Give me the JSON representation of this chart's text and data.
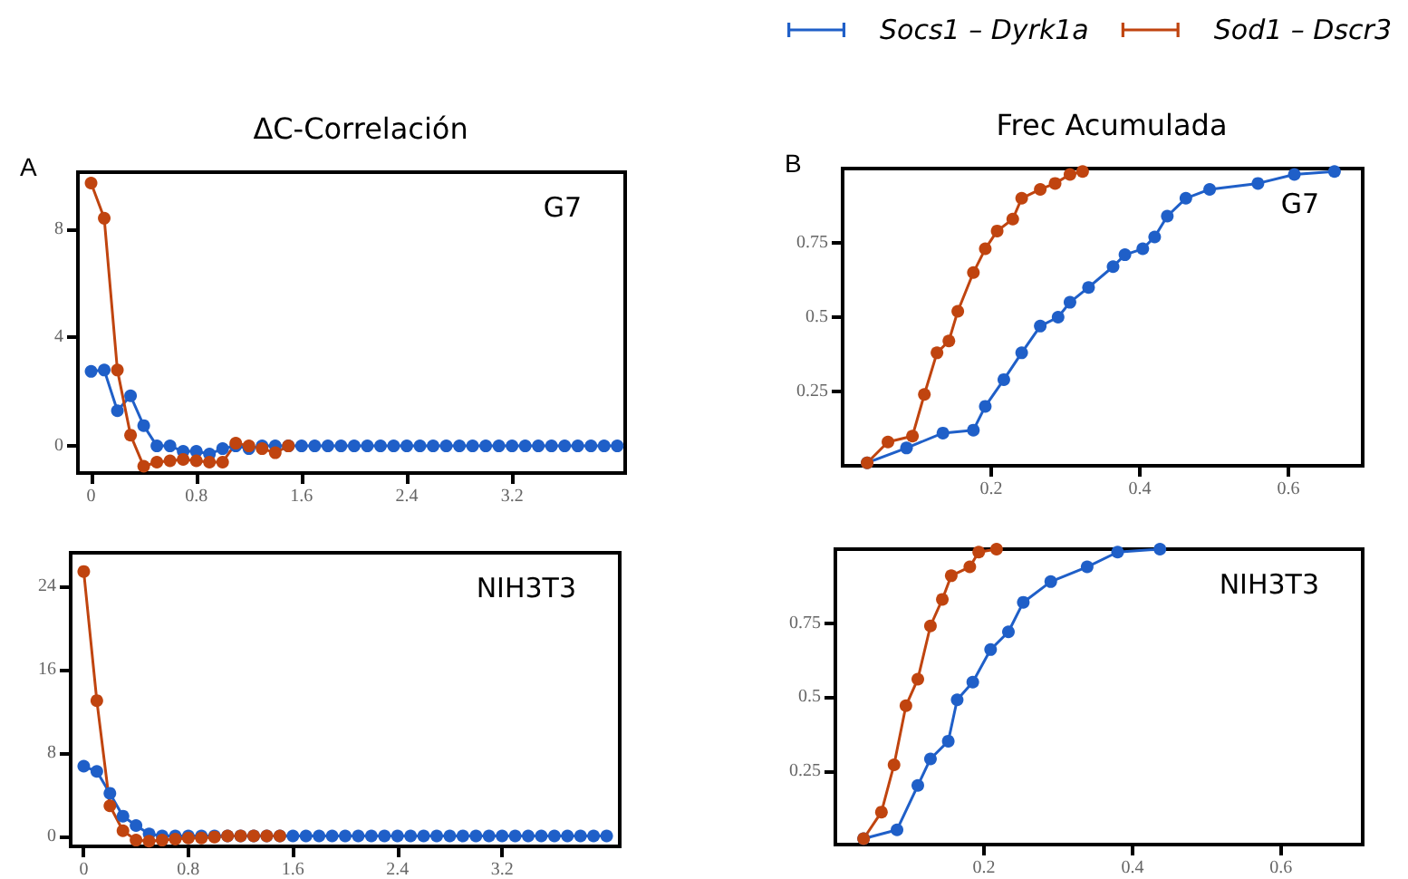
{
  "chart_data": [
    {
      "type": "line",
      "title": "ΔC-Correlación",
      "subtitle": "G7",
      "annotations": [
        "A"
      ],
      "xlim": [
        -0.1,
        4.06
      ],
      "xticks": [
        0,
        0.8,
        1.6,
        2.4,
        3.2
      ],
      "ylim": [
        -1,
        10.1
      ],
      "yticks": [
        0,
        4,
        8
      ],
      "grid": false,
      "marker": "circle",
      "line_style": "solid",
      "series": [
        {
          "color": "#1f5fc8",
          "x": [
            0,
            0.1,
            0.2,
            0.3,
            0.4,
            0.5,
            0.6,
            0.7,
            0.8,
            0.9,
            1.0,
            1.1,
            1.2,
            1.3,
            1.4,
            1.5,
            1.6,
            1.7,
            1.8,
            1.9,
            2.0,
            2.1,
            2.2,
            2.3,
            2.4,
            2.5,
            2.6,
            2.7,
            2.8,
            2.9,
            3.0,
            3.1,
            3.2,
            3.3,
            3.4,
            3.5,
            3.6,
            3.7,
            3.8,
            3.9,
            4.0
          ],
          "values": [
            2.75,
            2.8,
            1.3,
            1.85,
            0.75,
            0,
            0,
            -0.2,
            -0.2,
            -0.3,
            -0.1,
            0,
            -0.1,
            0,
            0,
            0,
            0,
            0,
            0,
            0,
            0,
            0,
            0,
            0,
            0,
            0,
            0,
            0,
            0,
            0,
            0,
            0,
            0,
            0,
            0,
            0,
            0,
            0,
            0,
            0,
            0
          ]
        },
        {
          "color": "#c0440f",
          "x": [
            0,
            0.1,
            0.2,
            0.3,
            0.4,
            0.5,
            0.6,
            0.7,
            0.8,
            0.9,
            1.0,
            1.1,
            1.2,
            1.3,
            1.4,
            1.5
          ],
          "values": [
            9.7,
            8.4,
            2.8,
            0.4,
            -0.75,
            -0.6,
            -0.55,
            -0.5,
            -0.55,
            -0.6,
            -0.6,
            0.1,
            0,
            -0.1,
            -0.25,
            0
          ]
        }
      ]
    },
    {
      "type": "line",
      "title": "Frec Acumulada",
      "subtitle": "G7",
      "annotations": [
        "B"
      ],
      "legend": "top",
      "xlim": [
        0,
        0.7
      ],
      "xticks": [
        0.2,
        0.4,
        0.6
      ],
      "ylim": [
        0,
        1
      ],
      "yticks": [
        0.25,
        0.5,
        0.75
      ],
      "grid": false,
      "marker": "circle",
      "line_style": "solid",
      "series": [
        {
          "name": "Socs1 – Dyrk1a",
          "color": "#1f5fc8",
          "x": [
            0.033,
            0.086,
            0.135,
            0.176,
            0.192,
            0.217,
            0.241,
            0.266,
            0.29,
            0.306,
            0.331,
            0.364,
            0.38,
            0.404,
            0.42,
            0.437,
            0.462,
            0.494,
            0.559,
            0.608,
            0.662
          ],
          "values": [
            0.01,
            0.06,
            0.11,
            0.12,
            0.2,
            0.29,
            0.38,
            0.47,
            0.5,
            0.55,
            0.6,
            0.67,
            0.71,
            0.73,
            0.77,
            0.84,
            0.9,
            0.93,
            0.95,
            0.98,
            0.99
          ]
        },
        {
          "name": "Sod1 – Dscr3",
          "color": "#c0440f",
          "x": [
            0.033,
            0.061,
            0.094,
            0.11,
            0.127,
            0.143,
            0.155,
            0.176,
            0.192,
            0.208,
            0.229,
            0.241,
            0.266,
            0.286,
            0.306,
            0.323
          ],
          "values": [
            0.01,
            0.08,
            0.1,
            0.24,
            0.38,
            0.42,
            0.52,
            0.65,
            0.73,
            0.79,
            0.83,
            0.9,
            0.93,
            0.95,
            0.98,
            0.99
          ]
        }
      ]
    },
    {
      "type": "line",
      "subtitle": "NIH3T3",
      "xlim": [
        -0.1,
        4.1
      ],
      "xticks": [
        0,
        0.8,
        1.6,
        2.4,
        3.2
      ],
      "ylim": [
        -1,
        27.2
      ],
      "yticks": [
        0,
        8,
        16,
        24
      ],
      "grid": false,
      "marker": "circle",
      "line_style": "solid",
      "series": [
        {
          "color": "#1f5fc8",
          "x": [
            0,
            0.1,
            0.2,
            0.3,
            0.4,
            0.5,
            0.6,
            0.7,
            0.8,
            0.9,
            1.0,
            1.1,
            1.2,
            1.3,
            1.4,
            1.5,
            1.6,
            1.7,
            1.8,
            1.9,
            2.0,
            2.1,
            2.2,
            2.3,
            2.4,
            2.5,
            2.6,
            2.7,
            2.8,
            2.9,
            3.0,
            3.1,
            3.2,
            3.3,
            3.4,
            3.5,
            3.6,
            3.7,
            3.8,
            3.9,
            4.0
          ],
          "values": [
            6.7,
            6.2,
            4.1,
            1.9,
            1.0,
            0.2,
            0,
            0,
            0,
            0,
            0,
            0,
            0,
            0,
            0,
            0,
            0,
            0,
            0,
            0,
            0,
            0,
            0,
            0,
            0,
            0,
            0,
            0,
            0,
            0,
            0,
            0,
            0,
            0,
            0,
            0,
            0,
            0,
            0,
            0,
            0
          ]
        },
        {
          "color": "#c0440f",
          "x": [
            0,
            0.1,
            0.2,
            0.3,
            0.4,
            0.5,
            0.6,
            0.7,
            0.8,
            0.9,
            1.0,
            1.1,
            1.2,
            1.3,
            1.4,
            1.5
          ],
          "values": [
            25.4,
            13.0,
            2.9,
            0.5,
            -0.4,
            -0.5,
            -0.4,
            -0.3,
            -0.2,
            -0.2,
            -0.1,
            0,
            0,
            0,
            0,
            0
          ]
        }
      ]
    },
    {
      "type": "line",
      "subtitle": "NIH3T3",
      "xlim": [
        0,
        0.71
      ],
      "xticks": [
        0.2,
        0.4,
        0.6
      ],
      "ylim": [
        0,
        1
      ],
      "yticks": [
        0.25,
        0.5,
        0.75
      ],
      "grid": false,
      "marker": "circle",
      "line_style": "solid",
      "series": [
        {
          "color": "#1f5fc8",
          "x": [
            0.038,
            0.083,
            0.111,
            0.128,
            0.152,
            0.164,
            0.185,
            0.209,
            0.233,
            0.253,
            0.29,
            0.339,
            0.38,
            0.437
          ],
          "values": [
            0.02,
            0.05,
            0.2,
            0.29,
            0.35,
            0.49,
            0.55,
            0.66,
            0.72,
            0.82,
            0.89,
            0.94,
            0.99,
            1.0
          ]
        },
        {
          "color": "#c0440f",
          "x": [
            0.038,
            0.062,
            0.079,
            0.095,
            0.111,
            0.128,
            0.144,
            0.156,
            0.181,
            0.193,
            0.217
          ],
          "values": [
            0.02,
            0.11,
            0.27,
            0.47,
            0.56,
            0.74,
            0.83,
            0.91,
            0.94,
            0.99,
            1.0
          ]
        }
      ]
    }
  ]
}
